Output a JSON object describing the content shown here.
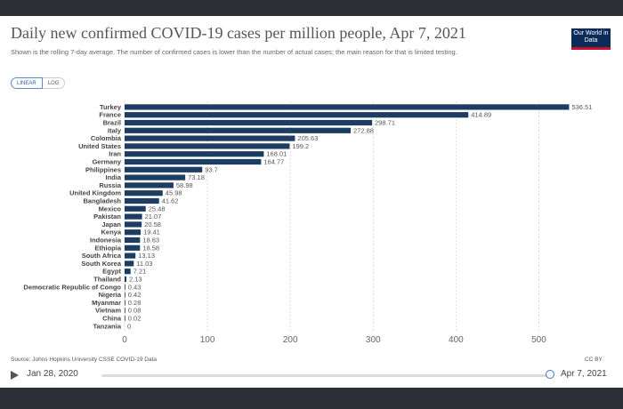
{
  "header": {
    "title": "Daily new confirmed COVID-19 cases per million people, Apr 7, 2021",
    "subtitle": "Shown is the rolling 7-day average. The number of confirmed cases is lower than the number of actual cases; the main reason for that is limited testing.",
    "logo_text": "Our World in Data"
  },
  "scale_toggle": {
    "linear": "LINEAR",
    "log": "LOG",
    "selected": "LINEAR"
  },
  "footer": {
    "source": "Source: Johns Hopkins University CSSE COVID-19 Data",
    "license": "CC BY"
  },
  "timeline": {
    "start": "Jan 28, 2020",
    "end": "Apr 7, 2021"
  },
  "colors": {
    "bar": "#1d3d63",
    "grid": "#dddddd",
    "logo_bg": "#0b2c5a",
    "logo_accent": "#c8102e"
  },
  "chart_data": {
    "type": "bar",
    "orientation": "horizontal",
    "title": "Daily new confirmed COVID-19 cases per million people, Apr 7, 2021",
    "xlim": [
      0,
      550
    ],
    "xticks": [
      0,
      100,
      200,
      300,
      400,
      500
    ],
    "grid": true,
    "categories": [
      "Turkey",
      "France",
      "Brazil",
      "Italy",
      "Colombia",
      "United States",
      "Iran",
      "Germany",
      "Philippines",
      "India",
      "Russia",
      "United Kingdom",
      "Bangladesh",
      "Mexico",
      "Pakistan",
      "Japan",
      "Kenya",
      "Indonesia",
      "Ethiopia",
      "South Africa",
      "South Korea",
      "Egypt",
      "Thailand",
      "Democratic Republic of Congo",
      "Nigeria",
      "Myanmar",
      "Vietnam",
      "China",
      "Tanzania"
    ],
    "values": [
      536.51,
      414.89,
      298.71,
      272.88,
      205.63,
      199.2,
      168.01,
      164.77,
      93.7,
      73.18,
      58.98,
      45.98,
      41.62,
      25.48,
      21.07,
      20.58,
      19.41,
      18.63,
      18.58,
      13.13,
      11.03,
      7.21,
      2.13,
      0.43,
      0.42,
      0.28,
      0.08,
      0.02,
      0
    ],
    "labels": [
      "536.51",
      "414.89",
      "298.71",
      "272.88",
      "205.63",
      "199.2",
      "168.01",
      "164.77",
      "93.7",
      "73.18",
      "58.98",
      "45.98",
      "41.62",
      "25.48",
      "21.07",
      "20.58",
      "19.41",
      "18.63",
      "18.58",
      "13.13",
      "11.03",
      "7.21",
      "2.13",
      "0.43",
      "0.42",
      "0.28",
      "0.08",
      "0.02",
      "0"
    ]
  }
}
